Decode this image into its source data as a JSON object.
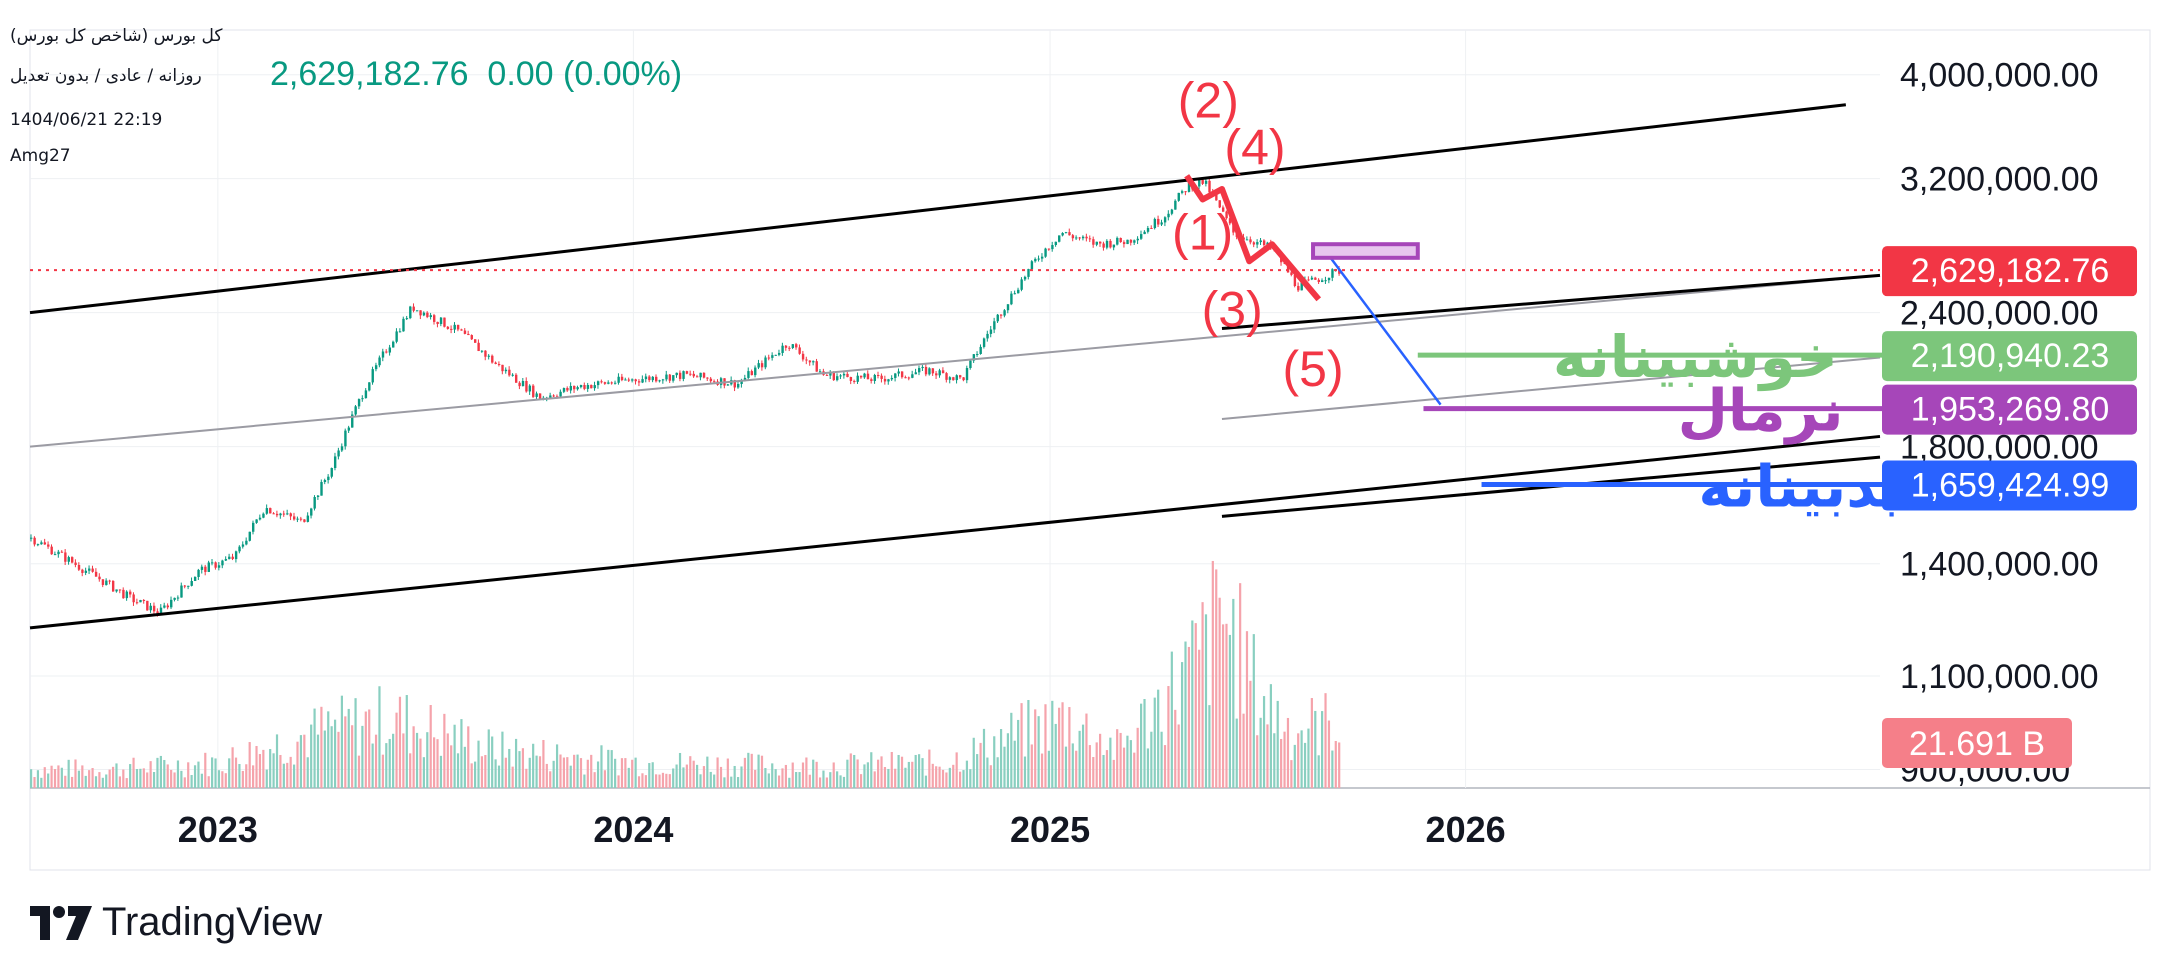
{
  "header": {
    "title": "کل بورس (شاخص کل بورس)",
    "subtitle": "روزانه / عادی / بدون تعدیل",
    "datetime": "1404/06/21 22:19",
    "author": "Amg27",
    "quote": "2,629,182.76  0.00 (0.00%)"
  },
  "brand": {
    "name": "TradingView"
  },
  "colors": {
    "up": "#089981",
    "down": "#f23645",
    "grid": "#eef0f3",
    "axis_text": "#131722",
    "wave": "#f23645",
    "optimistic": "#7cc67b",
    "normal": "#a646b9",
    "pessimistic": "#2962ff"
  },
  "chart_data": {
    "type": "line",
    "y_scale": "log",
    "ylim": [
      880000,
      4200000
    ],
    "y_ticks": [
      "4,000,000.00",
      "3,200,000.00",
      "2,400,000.00",
      "1,800,000.00",
      "1,400,000.00",
      "1,100,000.00",
      "900,000.00"
    ],
    "y_tick_values": [
      4000000,
      3200000,
      2400000,
      1800000,
      1400000,
      1100000,
      900000
    ],
    "x_ticks": [
      "2023",
      "2024",
      "2025",
      "2026"
    ],
    "x_tick_values": [
      "2023-01-01",
      "2024-01-01",
      "2025-01-01",
      "2026-01-01"
    ],
    "x_range": [
      "2022-07-20",
      "2026-12-31"
    ],
    "series": [
      {
        "type": "price",
        "points": [
          [
            "2022-07-20",
            1480000
          ],
          [
            "2022-09-01",
            1390000
          ],
          [
            "2022-10-15",
            1300000
          ],
          [
            "2022-11-10",
            1260000
          ],
          [
            "2022-12-15",
            1380000
          ],
          [
            "2023-01-15",
            1420000
          ],
          [
            "2023-02-10",
            1580000
          ],
          [
            "2023-03-15",
            1530000
          ],
          [
            "2023-04-10",
            1720000
          ],
          [
            "2023-05-10",
            2050000
          ],
          [
            "2023-06-20",
            2430000
          ],
          [
            "2023-08-01",
            2300000
          ],
          [
            "2023-09-01",
            2150000
          ],
          [
            "2023-10-10",
            2000000
          ],
          [
            "2023-11-15",
            2050000
          ],
          [
            "2024-01-01",
            2080000
          ],
          [
            "2024-02-15",
            2100000
          ],
          [
            "2024-04-01",
            2060000
          ],
          [
            "2024-05-15",
            2250000
          ],
          [
            "2024-06-15",
            2100000
          ],
          [
            "2024-08-01",
            2080000
          ],
          [
            "2024-09-15",
            2120000
          ],
          [
            "2024-10-15",
            2080000
          ],
          [
            "2024-11-15",
            2380000
          ],
          [
            "2024-12-20",
            2700000
          ],
          [
            "2025-01-10",
            2850000
          ],
          [
            "2025-02-10",
            2780000
          ],
          [
            "2025-03-10",
            2800000
          ],
          [
            "2025-04-10",
            2950000
          ],
          [
            "2025-05-01",
            3150000
          ],
          [
            "2025-05-15",
            3180000
          ],
          [
            "2025-06-10",
            2850000
          ],
          [
            "2025-07-15",
            2750000
          ],
          [
            "2025-08-05",
            2540000
          ],
          [
            "2025-08-15",
            2560000
          ],
          [
            "2025-09-12",
            2629182.76
          ]
        ]
      },
      {
        "type": "volume",
        "unit": "B",
        "points": [
          [
            "2022-07-20",
            6
          ],
          [
            "2022-10-01",
            6
          ],
          [
            "2023-01-01",
            8
          ],
          [
            "2023-04-01",
            18
          ],
          [
            "2023-06-01",
            22
          ],
          [
            "2023-09-01",
            12
          ],
          [
            "2024-01-01",
            8
          ],
          [
            "2024-06-01",
            7
          ],
          [
            "2024-10-01",
            8
          ],
          [
            "2024-12-01",
            17
          ],
          [
            "2025-01-15",
            22
          ],
          [
            "2025-03-01",
            12
          ],
          [
            "2025-05-10",
            40
          ],
          [
            "2025-06-01",
            55
          ],
          [
            "2025-07-01",
            30
          ],
          [
            "2025-08-01",
            18
          ],
          [
            "2025-09-12",
            21.691
          ]
        ]
      }
    ],
    "lines": [
      {
        "name": "channel-top",
        "color": "#000000",
        "from": [
          "2022-07-20",
          2400000
        ],
        "to": [
          "2026-12-01",
          3750000
        ]
      },
      {
        "name": "channel-bottom",
        "color": "#000000",
        "from": [
          "2022-07-20",
          1220000
        ],
        "to": [
          "2026-12-31",
          1840000
        ]
      },
      {
        "name": "channel-mid",
        "color": "#9b9ba3",
        "from": [
          "2022-07-20",
          1800000
        ],
        "to": [
          "2026-12-31",
          2600000
        ]
      },
      {
        "name": "parallel-1",
        "color": "#000000",
        "from": [
          "2025-06-01",
          2320000
        ],
        "to": [
          "2026-12-31",
          2600000
        ]
      },
      {
        "name": "parallel-2",
        "color": "#9b9ba3",
        "from": [
          "2025-06-01",
          1910000
        ],
        "to": [
          "2026-12-31",
          2180000
        ]
      },
      {
        "name": "parallel-3",
        "color": "#000000",
        "from": [
          "2025-06-01",
          1550000
        ],
        "to": [
          "2026-12-31",
          1760000
        ]
      },
      {
        "name": "price-line",
        "color": "#f23645",
        "dashed": true,
        "from": [
          "2022-07-20",
          2629182.76
        ],
        "to": [
          "2026-12-31",
          2629182.76
        ]
      },
      {
        "name": "projection",
        "color": "#2962ff",
        "from": [
          "2025-09-01",
          2730000
        ],
        "to": [
          "2025-12-10",
          1970000
        ]
      }
    ],
    "wave": {
      "points": [
        [
          "2025-05-01",
          3220000
        ],
        [
          "2025-05-15",
          3060000
        ],
        [
          "2025-06-01",
          3130000
        ],
        [
          "2025-06-25",
          2680000
        ],
        [
          "2025-07-15",
          2780000
        ],
        [
          "2025-08-25",
          2470000
        ]
      ],
      "labels": [
        {
          "text": "(2)",
          "x": "2025-05-20",
          "y": 3650000
        },
        {
          "text": "(4)",
          "x": "2025-06-30",
          "y": 3300000
        },
        {
          "text": "(1)",
          "x": "2025-05-15",
          "y": 2750000
        },
        {
          "text": "(3)",
          "x": "2025-06-10",
          "y": 2330000
        },
        {
          "text": "(5)",
          "x": "2025-08-20",
          "y": 2050000
        }
      ]
    },
    "target_box": {
      "from": [
        "2025-08-20",
        2780000
      ],
      "to": [
        "2025-11-20",
        2700000
      ]
    },
    "scenarios": [
      {
        "name": "خوشبینانه",
        "value": 2190940.23,
        "label": "2,190,940.23",
        "color": "#7cc67b",
        "from": "2025-11-20"
      },
      {
        "name": "نرمال",
        "value": 1953269.8,
        "label": "1,953,269.80",
        "color": "#a646b9",
        "from": "2025-11-25"
      },
      {
        "name": "بدبینانه",
        "value": 1659424.99,
        "label": "1,659,424.99",
        "color": "#2962ff",
        "from": "2026-01-15"
      }
    ],
    "last_price": {
      "value": 2629182.76,
      "label": "2,629,182.76"
    },
    "volume_label": {
      "value": 21.691,
      "label": "21.691 B"
    }
  }
}
